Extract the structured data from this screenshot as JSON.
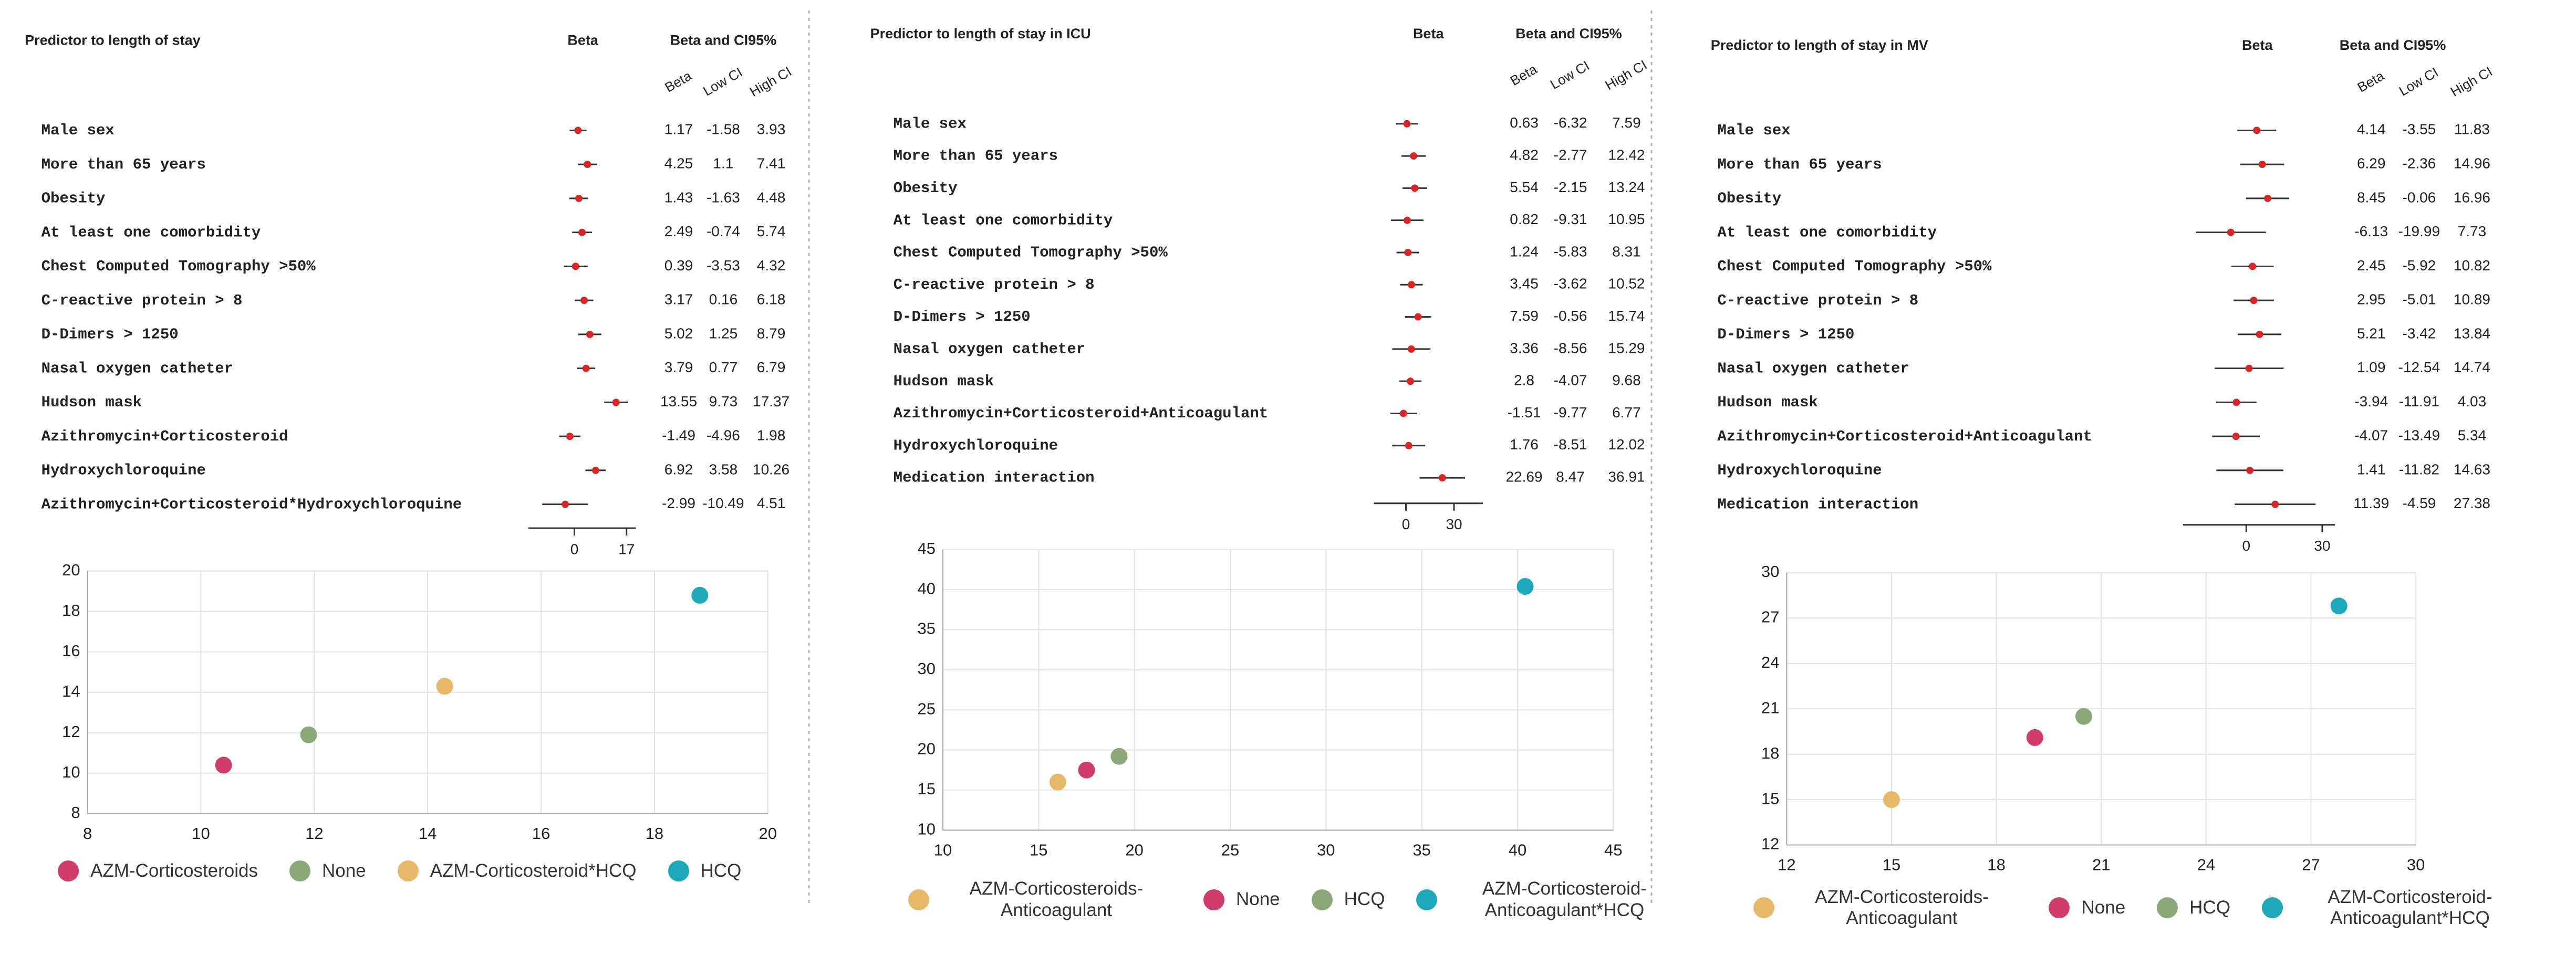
{
  "chart_data": [
    {
      "type": "forest",
      "title": "Predictor to length of stay",
      "plot_title": "Beta",
      "table_title": "Beta and CI95%",
      "categories": [
        "Male sex",
        "More than 65 years",
        "Obesity",
        "At least one comorbidity",
        "Chest Computed Tomography >50%",
        "C-reactive protein > 8",
        "D-Dimers > 1250",
        "Nasal oxygen catheter",
        "Hudson mask",
        "Azithromycin+Corticosteroid",
        "Hydroxychloroquine",
        "Azithromycin+Corticosteroid*Hydroxychloroquine"
      ],
      "series": [
        {
          "name": "Beta",
          "color": "#d62728",
          "values": [
            1.17,
            4.25,
            1.43,
            2.49,
            0.39,
            3.17,
            5.02,
            3.79,
            13.55,
            -1.49,
            6.92,
            -2.99
          ]
        },
        {
          "name": "Low CI",
          "color": "#333333",
          "values": [
            -1.58,
            1.1,
            -1.63,
            -0.74,
            -3.53,
            0.16,
            1.25,
            0.77,
            9.73,
            -4.96,
            3.58,
            -10.49
          ]
        },
        {
          "name": "High CI",
          "color": "#333333",
          "values": [
            3.93,
            7.41,
            4.48,
            5.74,
            4.32,
            6.18,
            8.79,
            6.79,
            17.37,
            1.98,
            10.26,
            4.51
          ]
        }
      ],
      "xlim": [
        -15,
        20
      ],
      "xticks": [
        0,
        17
      ]
    },
    {
      "type": "scatter",
      "series": [
        {
          "name": "AZM-Corticosteroids",
          "color": "#cf3d68",
          "x": [
            10.4
          ],
          "values": [
            10.4
          ]
        },
        {
          "name": "None",
          "color": "#8aa878",
          "x": [
            11.9
          ],
          "values": [
            11.9
          ]
        },
        {
          "name": "AZM-Corticosteroid*HCQ",
          "color": "#e6b86a",
          "x": [
            14.3
          ],
          "values": [
            14.3
          ]
        },
        {
          "name": "HCQ",
          "color": "#1fa8b8",
          "x": [
            18.8
          ],
          "values": [
            18.8
          ]
        }
      ],
      "xlim": [
        8,
        20
      ],
      "xticks": [
        8,
        10,
        12,
        14,
        16,
        18,
        20
      ],
      "ylim": [
        8,
        20
      ],
      "yticks": [
        8,
        10,
        12,
        14,
        16,
        18,
        20
      ],
      "grid": true
    },
    {
      "type": "forest",
      "title": "Predictor to length of stay in ICU",
      "plot_title": "Beta",
      "table_title": "Beta and CI95%",
      "categories": [
        "Male sex",
        "More than 65 years",
        "Obesity",
        "At least one comorbidity",
        "Chest Computed Tomography >50%",
        "C-reactive protein > 8",
        "D-Dimers > 1250",
        "Nasal oxygen catheter",
        "Hudson mask",
        "Azithromycin+Corticosteroid+Anticoagulant",
        "Hydroxychloroquine",
        "Medication interaction"
      ],
      "series": [
        {
          "name": "Beta",
          "color": "#d62728",
          "values": [
            0.63,
            4.82,
            5.54,
            0.82,
            1.24,
            3.45,
            7.59,
            3.36,
            2.8,
            -1.51,
            1.76,
            22.69
          ]
        },
        {
          "name": "Low CI",
          "color": "#333333",
          "values": [
            -6.32,
            -2.77,
            -2.15,
            -9.31,
            -5.83,
            -3.62,
            -0.56,
            -8.56,
            -4.07,
            -9.77,
            -8.51,
            8.47
          ]
        },
        {
          "name": "High CI",
          "color": "#333333",
          "values": [
            7.59,
            12.42,
            13.24,
            10.95,
            8.31,
            10.52,
            15.74,
            15.29,
            9.68,
            6.77,
            12.02,
            36.91
          ]
        }
      ],
      "xlim": [
        -20,
        48
      ],
      "xticks": [
        0,
        30
      ]
    },
    {
      "type": "scatter",
      "series": [
        {
          "name": "AZM-Corticosteroids-Anticoagulant",
          "color": "#e6b86a",
          "x": [
            16
          ],
          "values": [
            16
          ]
        },
        {
          "name": "None",
          "color": "#cf3d68",
          "x": [
            17.5
          ],
          "values": [
            17.5
          ]
        },
        {
          "name": "HCQ",
          "color": "#8aa878",
          "x": [
            19.2
          ],
          "values": [
            19.2
          ]
        },
        {
          "name": "AZM-Corticosteroid-Anticoagulant*HCQ",
          "color": "#1fa8b8",
          "x": [
            40.4
          ],
          "values": [
            40.4
          ]
        }
      ],
      "xlim": [
        10,
        45
      ],
      "xticks": [
        10,
        15,
        20,
        25,
        30,
        35,
        40,
        45
      ],
      "ylim": [
        10,
        45
      ],
      "yticks": [
        10,
        15,
        20,
        25,
        30,
        35,
        40,
        45
      ],
      "grid": true
    },
    {
      "type": "forest",
      "title": "Predictor to length of stay in MV",
      "plot_title": "Beta",
      "table_title": "Beta and CI95%",
      "categories": [
        "Male sex",
        "More than 65 years",
        "Obesity",
        "At least one comorbidity",
        "Chest Computed Tomography >50%",
        "C-reactive protein > 8",
        "D-Dimers > 1250",
        "Nasal oxygen catheter",
        "Hudson mask",
        "Azithromycin+Corticosteroid+Anticoagulant",
        "Hydroxychloroquine",
        "Medication interaction"
      ],
      "series": [
        {
          "name": "Beta",
          "color": "#d62728",
          "values": [
            4.14,
            6.29,
            8.45,
            -6.13,
            2.45,
            2.95,
            5.21,
            1.09,
            -3.94,
            -4.07,
            1.41,
            11.39
          ]
        },
        {
          "name": "Low CI",
          "color": "#333333",
          "values": [
            -3.55,
            -2.36,
            -0.06,
            -19.99,
            -5.92,
            -5.01,
            -3.42,
            -12.54,
            -11.91,
            -13.49,
            -11.82,
            -4.59
          ]
        },
        {
          "name": "High CI",
          "color": "#333333",
          "values": [
            11.83,
            14.96,
            16.96,
            7.73,
            10.82,
            10.89,
            13.84,
            14.74,
            4.03,
            5.34,
            14.63,
            27.38
          ]
        }
      ],
      "xlim": [
        -25,
        35
      ],
      "xticks": [
        0,
        30
      ]
    },
    {
      "type": "scatter",
      "series": [
        {
          "name": "AZM-Corticosteroids-Anticoagulant",
          "color": "#e6b86a",
          "x": [
            15
          ],
          "values": [
            15
          ]
        },
        {
          "name": "None",
          "color": "#cf3d68",
          "x": [
            19.1
          ],
          "values": [
            19.1
          ]
        },
        {
          "name": "HCQ",
          "color": "#8aa878",
          "x": [
            20.5
          ],
          "values": [
            20.5
          ]
        },
        {
          "name": "AZM-Corticosteroid-Anticoagulant*HCQ",
          "color": "#1fa8b8",
          "x": [
            27.8
          ],
          "values": [
            27.8
          ]
        }
      ],
      "xlim": [
        12,
        30
      ],
      "xticks": [
        12,
        15,
        18,
        21,
        24,
        27,
        30
      ],
      "ylim": [
        12,
        30
      ],
      "yticks": [
        12,
        15,
        18,
        21,
        24,
        27,
        30
      ],
      "grid": true
    }
  ]
}
